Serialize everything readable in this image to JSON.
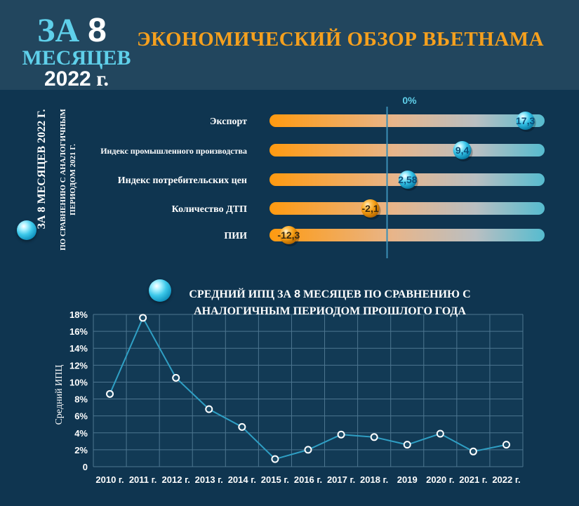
{
  "header": {
    "badge_line1_a": "ЗА ",
    "badge_line1_b": "8",
    "badge_line2": "МЕСЯЦЕВ",
    "badge_line3_a": "2022",
    "badge_line3_b": " г.",
    "main_title": "ЭКОНОМИЧЕСКИЙ ОБЗОР ВЬЕТНАМА"
  },
  "side_caption": {
    "main": "ЗА 8 МЕСЯЦЕВ 2022 Г.",
    "sub_line1": "ПО СРАВНЕНИЮ С АНАЛОГИЧНЫМ",
    "sub_line2": "ПЕРИОДОМ 2021 Г."
  },
  "line_title": {
    "line1_a": "СРЕДНИЙ ИПЦ ЗА ",
    "line1_b": "8",
    "line1_c": " МЕСЯЦЕВ ПО СРАВНЕНИЮ С",
    "line2": "АНАЛОГИЧНЫМ ПЕРИОДОМ ПРОШЛОГО ГОДА"
  },
  "colors": {
    "orange": "#f5a01e",
    "teal": "#5bb8cc",
    "accent_cyan": "#5fd0ea",
    "background": "#0f3550",
    "header_band": "#22465e"
  },
  "chart_data": [
    {
      "type": "bar",
      "zero_label": "0%",
      "categories": [
        "Экспорт",
        "Индекс промышленного производства",
        "Индекс потребительских цен",
        "Количество ДТП",
        "ПИИ"
      ],
      "values": [
        17.3,
        9.4,
        2.58,
        -2.1,
        -12.3
      ],
      "value_labels": [
        "17,3",
        "9,4",
        "2,58",
        "-2,1",
        "-12,3"
      ],
      "xlim": [
        -14,
        19
      ]
    },
    {
      "type": "line",
      "ylabel": "Средний ИПЦ",
      "x": [
        "2010 г.",
        "2011 г.",
        "2012 г.",
        "2013 г.",
        "2014 г.",
        "2015 г.",
        "2016 г.",
        "2017 г.",
        "2018 г.",
        "2019",
        "2020 г.",
        "2021 г.",
        "2022 г."
      ],
      "values": [
        8.6,
        17.6,
        10.5,
        6.8,
        4.7,
        0.9,
        2.0,
        3.8,
        3.5,
        2.6,
        3.9,
        1.8,
        2.6
      ],
      "ylim": [
        0,
        18
      ],
      "yticks": [
        0,
        2,
        4,
        6,
        8,
        10,
        12,
        14,
        16,
        18
      ],
      "ytick_labels": [
        "0",
        "2%",
        "4%",
        "6%",
        "8%",
        "10%",
        "12%",
        "14%",
        "16%",
        "18%"
      ],
      "grid": true
    }
  ]
}
